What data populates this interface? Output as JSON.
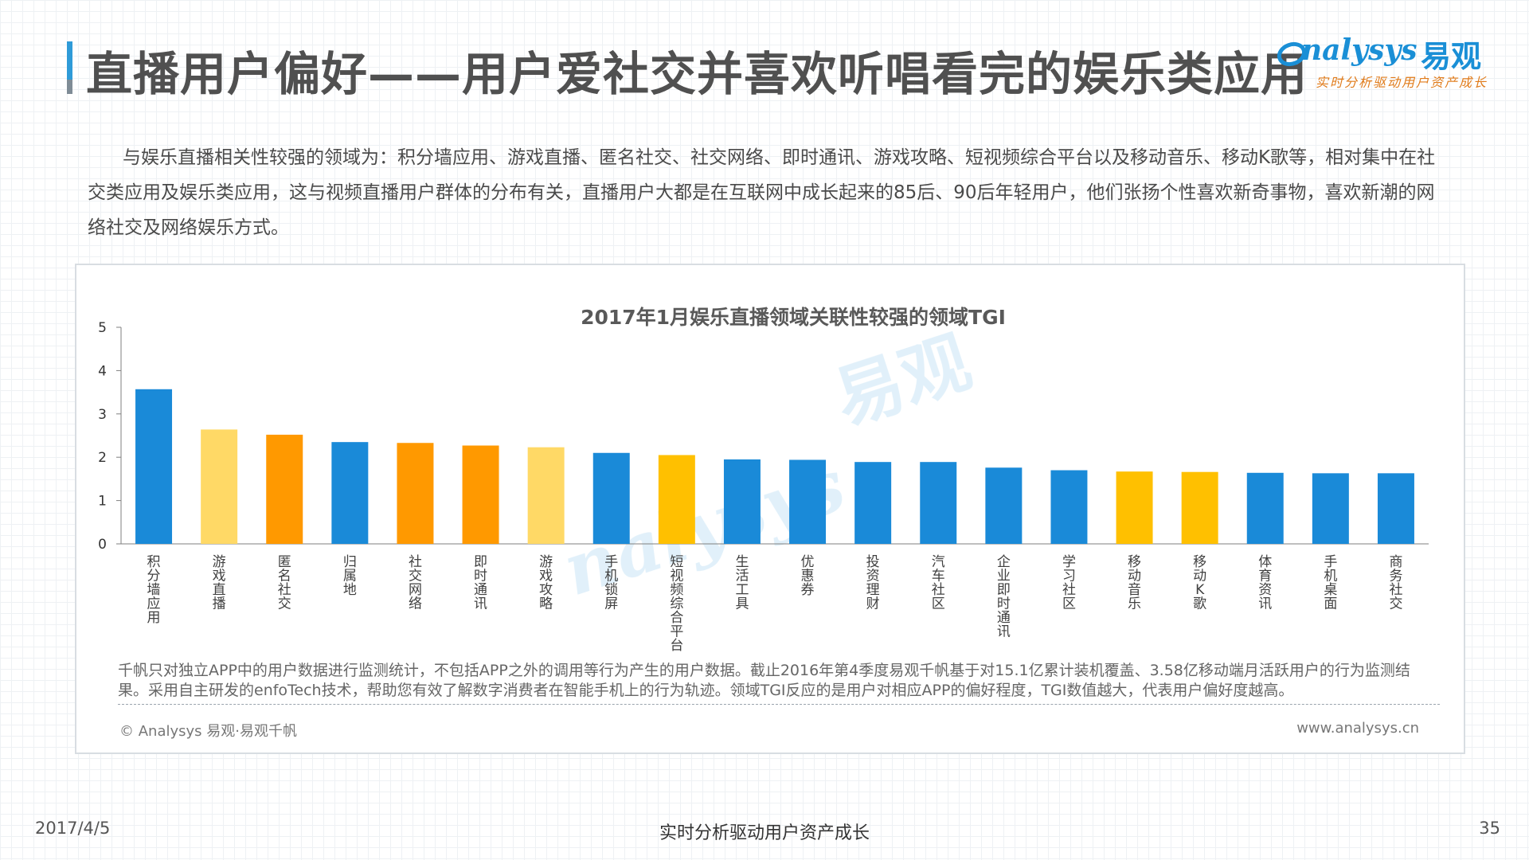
{
  "header": {
    "title": "直播用户偏好——用户爱社交并喜欢听唱看完的娱乐类应用",
    "logo_text": "nalysys",
    "logo_cn": "易观",
    "logo_tagline": "实时分析驱动用户资产成长"
  },
  "intro_text": "与娱乐直播相关性较强的领域为：积分墙应用、游戏直播、匿名社交、社交网络、即时通讯、游戏攻略、短视频综合平台以及移动音乐、移动K歌等，相对集中在社交类应用及娱乐类应用，这与视频直播用户群体的分布有关，直播用户大都是在互联网中成长起来的85后、90后年轻用户，他们张扬个性喜欢新奇事物，喜欢新潮的网络社交及网络娱乐方式。",
  "chart_data": {
    "type": "bar",
    "title": "2017年1月娱乐直播领域关联性较强的领域TGI",
    "xlabel": "",
    "ylabel": "",
    "ylim": [
      0,
      5
    ],
    "yticks": [
      "0",
      "1",
      "2",
      "3",
      "4",
      "5"
    ],
    "grid": false,
    "categories": [
      "积分墙应用",
      "游戏直播",
      "匿名社交",
      "归属地",
      "社交网络",
      "即时通讯",
      "游戏攻略",
      "手机锁屏",
      "短视频综合平台",
      "生活工具",
      "优惠券",
      "投资理财",
      "汽车社区",
      "企业即时通讯",
      "学习社区",
      "移动音乐",
      "移动K歌",
      "体育资讯",
      "手机桌面",
      "商务社交"
    ],
    "values": [
      3.57,
      2.64,
      2.52,
      2.35,
      2.33,
      2.27,
      2.23,
      2.1,
      2.05,
      1.95,
      1.94,
      1.89,
      1.89,
      1.76,
      1.7,
      1.67,
      1.66,
      1.64,
      1.63,
      1.63
    ],
    "bar_colors": [
      "#1a8ad8",
      "#ffd966",
      "#ff9900",
      "#1a8ad8",
      "#ff9900",
      "#ff9900",
      "#ffd966",
      "#1a8ad8",
      "#ffc000",
      "#1a8ad8",
      "#1a8ad8",
      "#1a8ad8",
      "#1a8ad8",
      "#1a8ad8",
      "#1a8ad8",
      "#ffc000",
      "#ffc000",
      "#1a8ad8",
      "#1a8ad8",
      "#1a8ad8"
    ]
  },
  "note": "千帆只对独立APP中的用户数据进行监测统计，不包括APP之外的调用等行为产生的用户数据。截止2016年第4季度易观千帆基于对15.1亿累计装机覆盖、3.58亿移动端月活跃用户的行为监测结果。采用自主研发的enfoTech技术，帮助您有效了解数字消费者在智能手机上的行为轨迹。领域TGI反应的是用户对相应APP的偏好程度，TGI数值越大，代表用户偏好度越高。",
  "source_left": "© Analysys 易观·易观千帆",
  "source_right": "www.analysys.cn",
  "footer": {
    "date": "2017/4/5",
    "center": "实时分析驱动用户资产成长",
    "page": "35"
  }
}
